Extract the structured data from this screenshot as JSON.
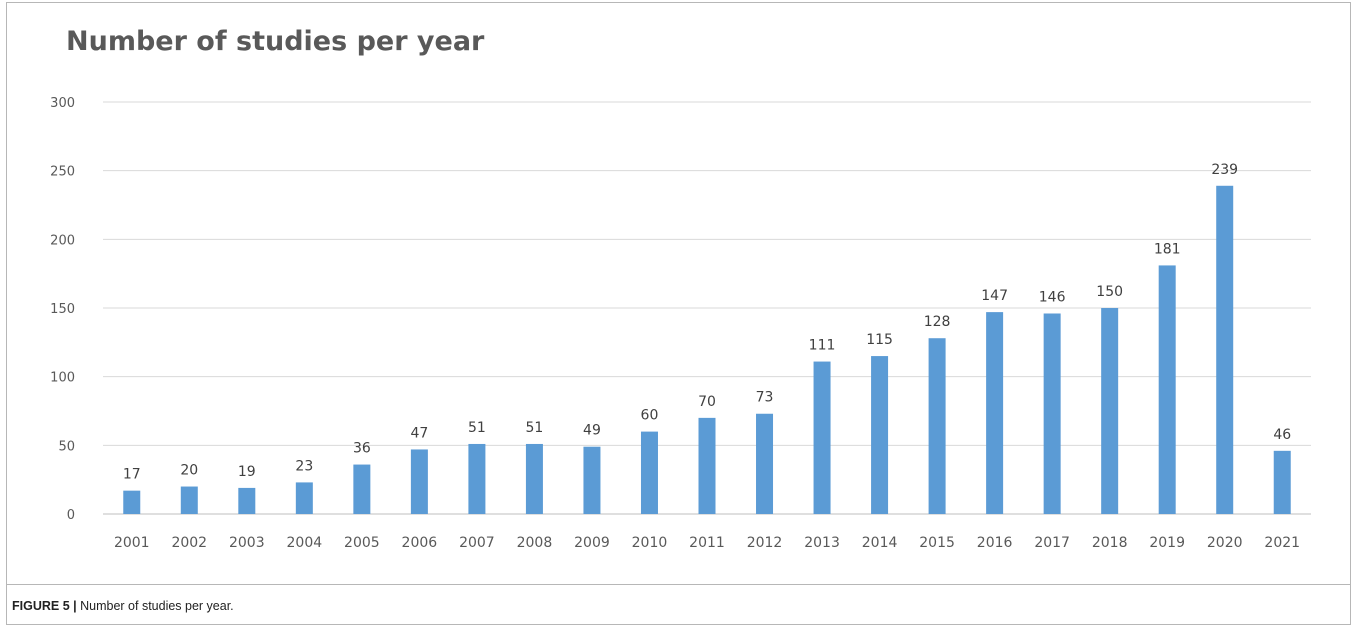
{
  "chart_data": {
    "type": "bar",
    "title": "Number of studies per year",
    "xlabel": "",
    "ylabel": "",
    "categories": [
      "2001",
      "2002",
      "2003",
      "2004",
      "2005",
      "2006",
      "2007",
      "2008",
      "2009",
      "2010",
      "2011",
      "2012",
      "2013",
      "2014",
      "2015",
      "2016",
      "2017",
      "2018",
      "2019",
      "2020",
      "2021"
    ],
    "values": [
      17,
      20,
      19,
      23,
      36,
      47,
      51,
      51,
      49,
      60,
      70,
      73,
      111,
      115,
      128,
      147,
      146,
      150,
      181,
      239,
      46
    ],
    "ylim": [
      0,
      300
    ],
    "yticks": [
      0,
      50,
      100,
      150,
      200,
      250,
      300
    ],
    "grid": true,
    "data_labels": true,
    "colors": {
      "bar": "#5b9bd5",
      "grid": "#d9d9d9",
      "axis_text": "#595959",
      "label_text": "#404040"
    }
  },
  "caption": {
    "label": "FIGURE 5 |",
    "text": "Number of studies per year."
  }
}
